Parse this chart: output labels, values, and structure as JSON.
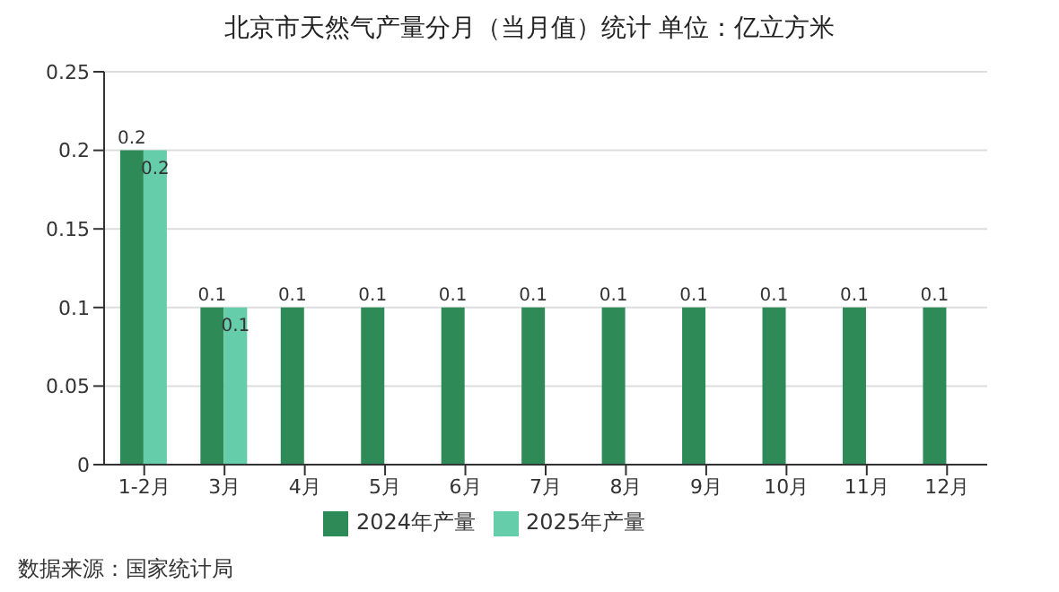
{
  "chart_data": {
    "type": "bar",
    "title": "北京市天然气产量分月（当月值）统计 单位：亿立方米",
    "categories": [
      "1-2月",
      "3月",
      "4月",
      "5月",
      "6月",
      "7月",
      "8月",
      "9月",
      "10月",
      "11月",
      "12月"
    ],
    "series": [
      {
        "name": "2024年产量",
        "color": "#2e8b57",
        "values": [
          0.2,
          0.1,
          0.1,
          0.1,
          0.1,
          0.1,
          0.1,
          0.1,
          0.1,
          0.1,
          0.1
        ]
      },
      {
        "name": "2025年产量",
        "color": "#66cdaa",
        "values": [
          0.2,
          0.1,
          null,
          null,
          null,
          null,
          null,
          null,
          null,
          null,
          null
        ]
      }
    ],
    "ylim": [
      0,
      0.25
    ],
    "yticks": [
      0,
      0.05,
      0.1,
      0.15,
      0.2,
      0.25
    ],
    "grid": "y",
    "legend": "bottom",
    "data_labels": true,
    "annotations": [
      "数据来源：国家统计局"
    ]
  }
}
